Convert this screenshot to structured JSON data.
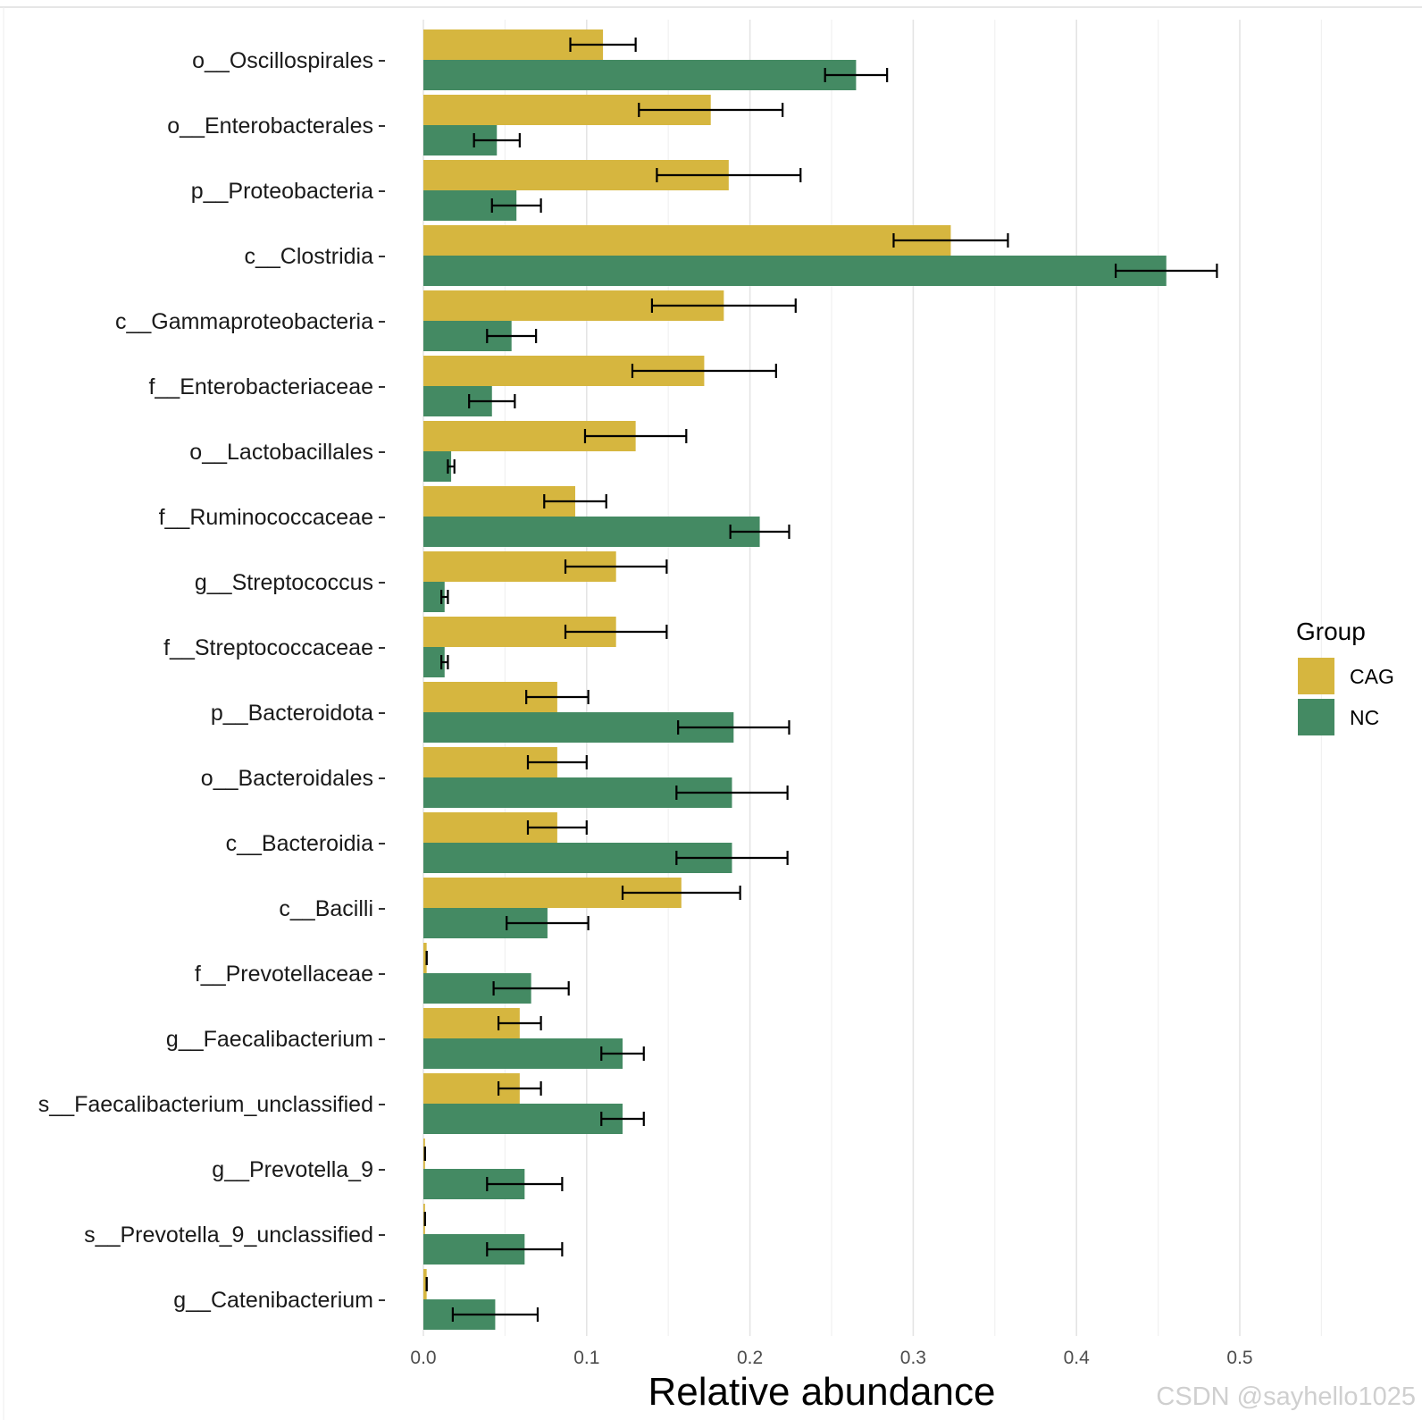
{
  "chart_data": {
    "type": "bar",
    "orientation": "horizontal",
    "categories": [
      "o__Oscillospirales",
      "o__Enterobacterales",
      "p__Proteobacteria",
      "c__Clostridia",
      "c__Gammaproteobacteria",
      "f__Enterobacteriaceae",
      "o__Lactobacillales",
      "f__Ruminococcaceae",
      "g__Streptococcus",
      "f__Streptococcaceae",
      "p__Bacteroidota",
      "o__Bacteroidales",
      "c__Bacteroidia",
      "c__Bacilli",
      "f__Prevotellaceae",
      "g__Faecalibacterium",
      "s__Faecalibacterium_unclassified",
      "g__Prevotella_9",
      "s__Prevotella_9_unclassified",
      "g__Catenibacterium"
    ],
    "series": [
      {
        "name": "CAG",
        "color": "#D6B63F",
        "values": [
          0.11,
          0.176,
          0.187,
          0.323,
          0.184,
          0.172,
          0.13,
          0.093,
          0.118,
          0.118,
          0.082,
          0.082,
          0.082,
          0.158,
          0.002,
          0.059,
          0.059,
          0.001,
          0.001,
          0.002
        ],
        "errors": [
          0.02,
          0.044,
          0.044,
          0.035,
          0.044,
          0.044,
          0.031,
          0.019,
          0.031,
          0.031,
          0.019,
          0.018,
          0.018,
          0.036,
          0.0,
          0.013,
          0.013,
          0.0,
          0.0,
          0.0
        ]
      },
      {
        "name": "NC",
        "color": "#448A63",
        "values": [
          0.265,
          0.045,
          0.057,
          0.455,
          0.054,
          0.042,
          0.017,
          0.206,
          0.013,
          0.013,
          0.19,
          0.189,
          0.189,
          0.076,
          0.066,
          0.122,
          0.122,
          0.062,
          0.062,
          0.044
        ],
        "errors": [
          0.019,
          0.014,
          0.015,
          0.031,
          0.015,
          0.014,
          0.002,
          0.018,
          0.002,
          0.002,
          0.034,
          0.034,
          0.034,
          0.025,
          0.023,
          0.013,
          0.013,
          0.023,
          0.023,
          0.026
        ]
      }
    ],
    "xlabel": "Relative abundance",
    "ylabel": "",
    "xlim": [
      0,
      0.55
    ],
    "xticks": [
      "0.0",
      "0.1",
      "0.2",
      "0.3",
      "0.4",
      "0.5"
    ],
    "grid": true,
    "legend": {
      "title": "Group",
      "position": "right",
      "entries": [
        "CAG",
        "NC"
      ]
    }
  },
  "watermark": "CSDN @sayhello1025"
}
